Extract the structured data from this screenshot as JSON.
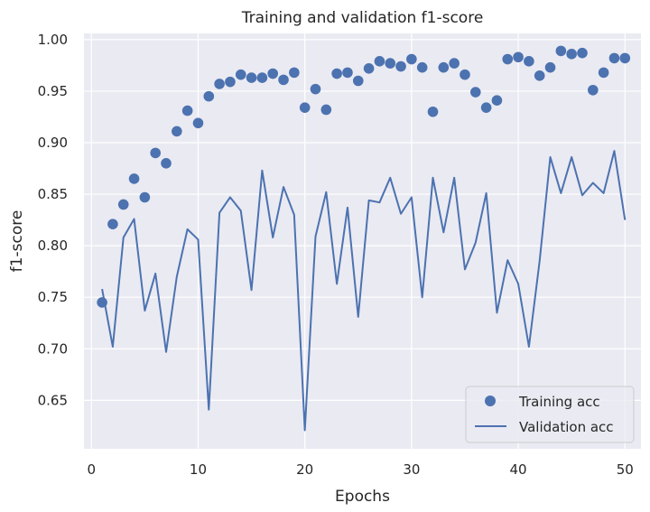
{
  "chart_data": {
    "type": "line",
    "title": "Training and validation f1-score",
    "xlabel": "Epochs",
    "ylabel": "f1-score",
    "xlim": [
      -0.7,
      51.5
    ],
    "ylim": [
      0.603,
      1.006
    ],
    "xticks": [
      0,
      10,
      20,
      30,
      40,
      50
    ],
    "yticks": [
      0.65,
      0.7,
      0.75,
      0.8,
      0.85,
      0.9,
      0.95,
      1.0
    ],
    "xtick_labels": [
      "0",
      "10",
      "20",
      "30",
      "40",
      "50"
    ],
    "ytick_labels": [
      "0.65",
      "0.70",
      "0.75",
      "0.80",
      "0.85",
      "0.90",
      "0.95",
      "1.00"
    ],
    "grid": true,
    "legend_position": "bottom-right",
    "colors": {
      "series": "#4c72b0",
      "plot_background": "#eaeaf2",
      "grid": "#ffffff"
    },
    "x": [
      1,
      2,
      3,
      4,
      5,
      6,
      7,
      8,
      9,
      10,
      11,
      12,
      13,
      14,
      15,
      16,
      17,
      18,
      19,
      20,
      21,
      22,
      23,
      24,
      25,
      26,
      27,
      28,
      29,
      30,
      31,
      32,
      33,
      34,
      35,
      36,
      37,
      38,
      39,
      40,
      41,
      42,
      43,
      44,
      45,
      46,
      47,
      48,
      49,
      50
    ],
    "series": [
      {
        "name": "Training acc",
        "style": "markers",
        "values": [
          0.745,
          0.821,
          0.84,
          0.865,
          0.847,
          0.89,
          0.88,
          0.911,
          0.931,
          0.919,
          0.945,
          0.957,
          0.959,
          0.966,
          0.963,
          0.963,
          0.967,
          0.961,
          0.968,
          0.934,
          0.952,
          0.932,
          0.967,
          0.968,
          0.96,
          0.972,
          0.979,
          0.977,
          0.974,
          0.981,
          0.973,
          0.93,
          0.973,
          0.977,
          0.966,
          0.949,
          0.934,
          0.941,
          0.981,
          0.983,
          0.979,
          0.965,
          0.973,
          0.989,
          0.986,
          0.987,
          0.951,
          0.968,
          0.982,
          0.982
        ]
      },
      {
        "name": "Validation acc",
        "style": "line",
        "values": [
          0.758,
          0.702,
          0.808,
          0.826,
          0.737,
          0.773,
          0.697,
          0.77,
          0.816,
          0.806,
          0.641,
          0.832,
          0.847,
          0.834,
          0.757,
          0.873,
          0.808,
          0.857,
          0.83,
          0.621,
          0.809,
          0.852,
          0.763,
          0.837,
          0.731,
          0.844,
          0.842,
          0.866,
          0.831,
          0.847,
          0.75,
          0.866,
          0.813,
          0.866,
          0.777,
          0.803,
          0.851,
          0.735,
          0.786,
          0.763,
          0.702,
          0.785,
          0.886,
          0.851,
          0.886,
          0.849,
          0.861,
          0.851,
          0.892,
          0.825
        ]
      }
    ]
  }
}
